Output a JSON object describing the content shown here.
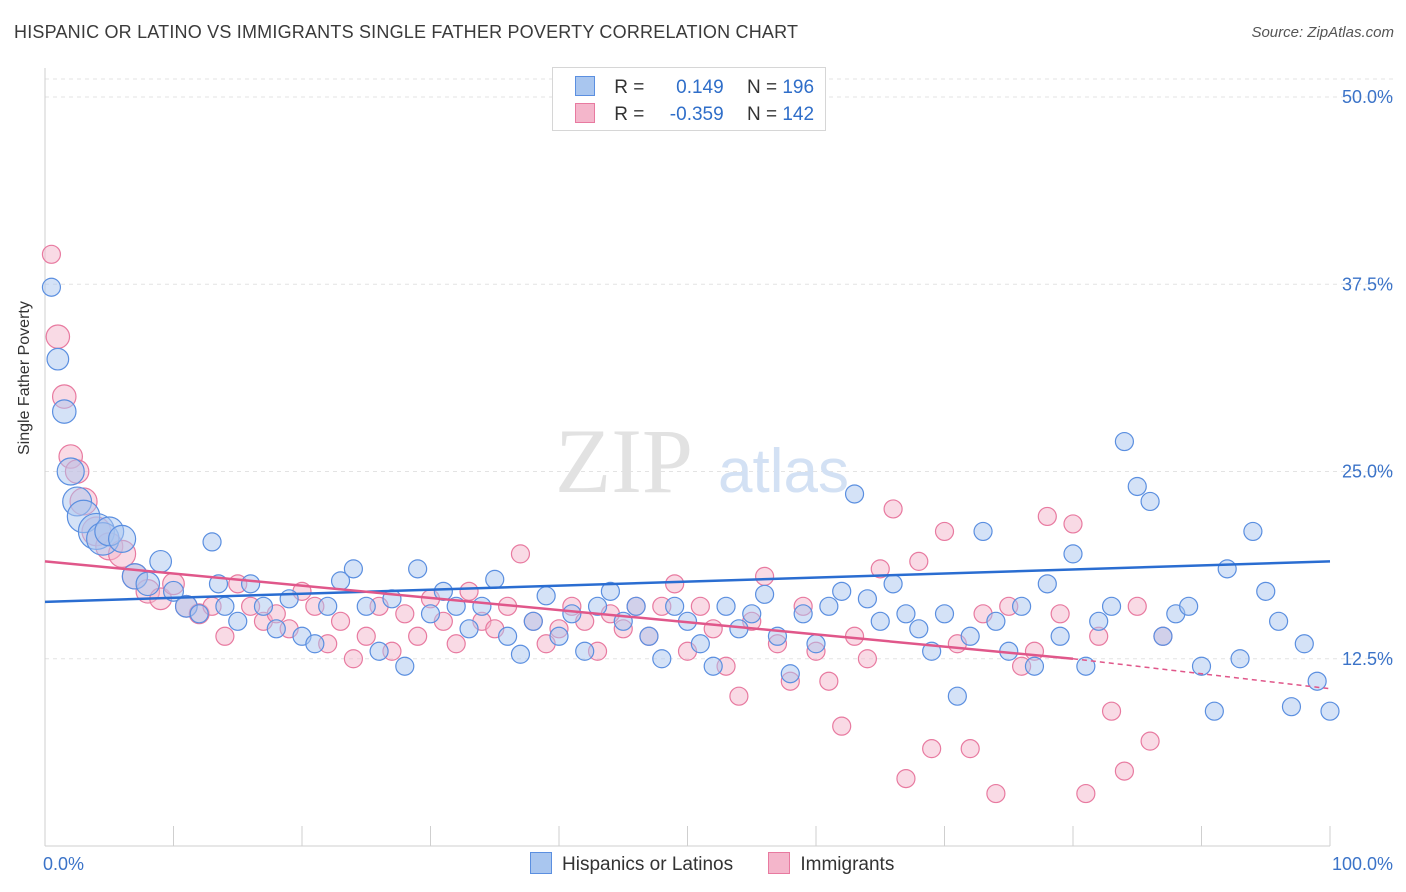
{
  "title": "HISPANIC OR LATINO VS IMMIGRANTS SINGLE FATHER POVERTY CORRELATION CHART",
  "source": "Source: ZipAtlas.com",
  "watermark": {
    "zip": "ZIP",
    "atlas": "atlas"
  },
  "legend": {
    "series1": {
      "r_label": "R =",
      "r_value": "0.149",
      "n_label": "N =",
      "n_value": "196"
    },
    "series2": {
      "r_label": "R =",
      "r_value": "-0.359",
      "n_label": "N =",
      "n_value": "142"
    }
  },
  "bottom_legend": {
    "series1": "Hispanics or Latinos",
    "series2": "Immigrants"
  },
  "colors": {
    "blue": "#5b8fe0",
    "blue_fill": "#a9c6ef",
    "blue_line": "#2a6dd1",
    "pink": "#e87aa0",
    "pink_fill": "#f4b6cb",
    "pink_line": "#e0578a",
    "tick_text": "#3b73c8"
  },
  "chart_data": {
    "type": "scatter",
    "title": "HISPANIC OR LATINO VS IMMIGRANTS SINGLE FATHER POVERTY CORRELATION CHART",
    "ylabel": "Single Father Poverty",
    "xlabel": "",
    "x_tick_labels": [
      "0.0%",
      "100.0%"
    ],
    "y_tick_labels": [
      "12.5%",
      "25.0%",
      "37.5%",
      "50.0%"
    ],
    "y_ticks": [
      12.5,
      25.0,
      37.5,
      50.0
    ],
    "xlim": [
      0,
      100
    ],
    "ylim": [
      0,
      50
    ],
    "grid": true,
    "legend_position": "top-center",
    "series": [
      {
        "name": "Hispanics or Latinos",
        "color": "blue",
        "trend": {
          "x": [
            0,
            100
          ],
          "y": [
            16.3,
            19.0
          ]
        },
        "points": [
          [
            0.5,
            37.3,
            1
          ],
          [
            1,
            32.5,
            1.2
          ],
          [
            1.5,
            29,
            1.3
          ],
          [
            2,
            25,
            1.5
          ],
          [
            2.5,
            23,
            1.6
          ],
          [
            3,
            22,
            1.8
          ],
          [
            4,
            21,
            2
          ],
          [
            4.5,
            20.5,
            1.8
          ],
          [
            5,
            21,
            1.6
          ],
          [
            6,
            20.5,
            1.5
          ],
          [
            7,
            18,
            1.4
          ],
          [
            8,
            17.5,
            1.3
          ],
          [
            9,
            19,
            1.2
          ],
          [
            10,
            17,
            1.1
          ],
          [
            11,
            16,
            1.2
          ],
          [
            12,
            15.5,
            1
          ],
          [
            13,
            20.3,
            1
          ],
          [
            13.5,
            17.5,
            1
          ],
          [
            14,
            16,
            1
          ],
          [
            15,
            15,
            1
          ],
          [
            16,
            17.5,
            1
          ],
          [
            17,
            16,
            1
          ],
          [
            18,
            14.5,
            1
          ],
          [
            19,
            16.5,
            1
          ],
          [
            20,
            14,
            1
          ],
          [
            21,
            13.5,
            1
          ],
          [
            22,
            16,
            1
          ],
          [
            23,
            17.7,
            1
          ],
          [
            24,
            18.5,
            1
          ],
          [
            25,
            16,
            1
          ],
          [
            26,
            13,
            1
          ],
          [
            27,
            16.5,
            1
          ],
          [
            28,
            12,
            1
          ],
          [
            29,
            18.5,
            1
          ],
          [
            30,
            15.5,
            1
          ],
          [
            31,
            17,
            1
          ],
          [
            32,
            16,
            1
          ],
          [
            33,
            14.5,
            1
          ],
          [
            34,
            16,
            1
          ],
          [
            35,
            17.8,
            1
          ],
          [
            36,
            14,
            1
          ],
          [
            37,
            12.8,
            1
          ],
          [
            38,
            15,
            1
          ],
          [
            39,
            16.7,
            1
          ],
          [
            40,
            14,
            1
          ],
          [
            41,
            15.5,
            1
          ],
          [
            42,
            13,
            1
          ],
          [
            43,
            16,
            1
          ],
          [
            44,
            17,
            1
          ],
          [
            45,
            15,
            1
          ],
          [
            46,
            16,
            1
          ],
          [
            47,
            14,
            1
          ],
          [
            48,
            12.5,
            1
          ],
          [
            49,
            16,
            1
          ],
          [
            50,
            15,
            1
          ],
          [
            51,
            13.5,
            1
          ],
          [
            52,
            12,
            1
          ],
          [
            53,
            16,
            1
          ],
          [
            54,
            14.5,
            1
          ],
          [
            55,
            15.5,
            1
          ],
          [
            56,
            16.8,
            1
          ],
          [
            57,
            14,
            1
          ],
          [
            58,
            11.5,
            1
          ],
          [
            59,
            15.5,
            1
          ],
          [
            60,
            13.5,
            1
          ],
          [
            61,
            16,
            1
          ],
          [
            62,
            17,
            1
          ],
          [
            63,
            23.5,
            1
          ],
          [
            64,
            16.5,
            1
          ],
          [
            65,
            15,
            1
          ],
          [
            66,
            17.5,
            1
          ],
          [
            67,
            15.5,
            1
          ],
          [
            68,
            14.5,
            1
          ],
          [
            69,
            13,
            1
          ],
          [
            70,
            15.5,
            1
          ],
          [
            71,
            10,
            1
          ],
          [
            72,
            14,
            1
          ],
          [
            73,
            21,
            1
          ],
          [
            74,
            15,
            1
          ],
          [
            75,
            13,
            1
          ],
          [
            76,
            16,
            1
          ],
          [
            77,
            12,
            1
          ],
          [
            78,
            17.5,
            1
          ],
          [
            79,
            14,
            1
          ],
          [
            80,
            19.5,
            1
          ],
          [
            81,
            12,
            1
          ],
          [
            82,
            15,
            1
          ],
          [
            83,
            16,
            1
          ],
          [
            84,
            27,
            1
          ],
          [
            85,
            24,
            1
          ],
          [
            86,
            23,
            1
          ],
          [
            87,
            14,
            1
          ],
          [
            88,
            15.5,
            1
          ],
          [
            89,
            16,
            1
          ],
          [
            90,
            12,
            1
          ],
          [
            91,
            9,
            1
          ],
          [
            92,
            18.5,
            1
          ],
          [
            93,
            12.5,
            1
          ],
          [
            94,
            21,
            1
          ],
          [
            95,
            17,
            1
          ],
          [
            96,
            15,
            1
          ],
          [
            97,
            9.3,
            1
          ],
          [
            98,
            13.5,
            1
          ],
          [
            99,
            11,
            1
          ],
          [
            100,
            9,
            1
          ]
        ]
      },
      {
        "name": "Immigrants",
        "color": "pink",
        "trend_solid": {
          "x": [
            0,
            80
          ],
          "y": [
            19.0,
            12.5
          ]
        },
        "trend_dashed": {
          "x": [
            80,
            100
          ],
          "y": [
            12.5,
            10.5
          ]
        },
        "points": [
          [
            0.5,
            39.5,
            1
          ],
          [
            1,
            34,
            1.3
          ],
          [
            1.5,
            30,
            1.3
          ],
          [
            2,
            26,
            1.3
          ],
          [
            2.5,
            25,
            1.3
          ],
          [
            3,
            23,
            1.5
          ],
          [
            4,
            21,
            1.6
          ],
          [
            5,
            20,
            1.5
          ],
          [
            6,
            19.5,
            1.5
          ],
          [
            7,
            18,
            1.4
          ],
          [
            8,
            17,
            1.3
          ],
          [
            9,
            16.5,
            1.2
          ],
          [
            10,
            17.5,
            1.2
          ],
          [
            11,
            16,
            1.2
          ],
          [
            12,
            15.5,
            1.1
          ],
          [
            13,
            16,
            1
          ],
          [
            14,
            14,
            1
          ],
          [
            15,
            17.5,
            1
          ],
          [
            16,
            16,
            1
          ],
          [
            17,
            15,
            1
          ],
          [
            18,
            15.5,
            1
          ],
          [
            19,
            14.5,
            1
          ],
          [
            20,
            17,
            1
          ],
          [
            21,
            16,
            1
          ],
          [
            22,
            13.5,
            1
          ],
          [
            23,
            15,
            1
          ],
          [
            24,
            12.5,
            1
          ],
          [
            25,
            14,
            1
          ],
          [
            26,
            16,
            1
          ],
          [
            27,
            13,
            1
          ],
          [
            28,
            15.5,
            1
          ],
          [
            29,
            14,
            1
          ],
          [
            30,
            16.5,
            1
          ],
          [
            31,
            15,
            1
          ],
          [
            32,
            13.5,
            1
          ],
          [
            33,
            17,
            1
          ],
          [
            34,
            15,
            1
          ],
          [
            35,
            14.5,
            1
          ],
          [
            36,
            16,
            1
          ],
          [
            37,
            19.5,
            1
          ],
          [
            38,
            15,
            1
          ],
          [
            39,
            13.5,
            1
          ],
          [
            40,
            14.5,
            1
          ],
          [
            41,
            16,
            1
          ],
          [
            42,
            15,
            1
          ],
          [
            43,
            13,
            1
          ],
          [
            44,
            15.5,
            1
          ],
          [
            45,
            14.5,
            1
          ],
          [
            46,
            16,
            1
          ],
          [
            47,
            14,
            1
          ],
          [
            48,
            16,
            1
          ],
          [
            49,
            17.5,
            1
          ],
          [
            50,
            13,
            1
          ],
          [
            51,
            16,
            1
          ],
          [
            52,
            14.5,
            1
          ],
          [
            53,
            12,
            1
          ],
          [
            54,
            10,
            1
          ],
          [
            55,
            15,
            1
          ],
          [
            56,
            18,
            1
          ],
          [
            57,
            13.5,
            1
          ],
          [
            58,
            11,
            1
          ],
          [
            59,
            16,
            1
          ],
          [
            60,
            13,
            1
          ],
          [
            61,
            11,
            1
          ],
          [
            62,
            8,
            1
          ],
          [
            63,
            14,
            1
          ],
          [
            64,
            12.5,
            1
          ],
          [
            65,
            18.5,
            1
          ],
          [
            66,
            22.5,
            1
          ],
          [
            67,
            4.5,
            1
          ],
          [
            68,
            19,
            1
          ],
          [
            69,
            6.5,
            1
          ],
          [
            70,
            21,
            1
          ],
          [
            71,
            13.5,
            1
          ],
          [
            72,
            6.5,
            1
          ],
          [
            73,
            15.5,
            1
          ],
          [
            74,
            3.5,
            1
          ],
          [
            75,
            16,
            1
          ],
          [
            76,
            12,
            1
          ],
          [
            77,
            13,
            1
          ],
          [
            78,
            22,
            1
          ],
          [
            79,
            15.5,
            1
          ],
          [
            80,
            21.5,
            1
          ],
          [
            81,
            3.5,
            1
          ],
          [
            82,
            14,
            1
          ],
          [
            83,
            9,
            1
          ],
          [
            84,
            5,
            1
          ],
          [
            85,
            16,
            1
          ],
          [
            86,
            7,
            1
          ],
          [
            87,
            14,
            1
          ]
        ]
      }
    ]
  }
}
